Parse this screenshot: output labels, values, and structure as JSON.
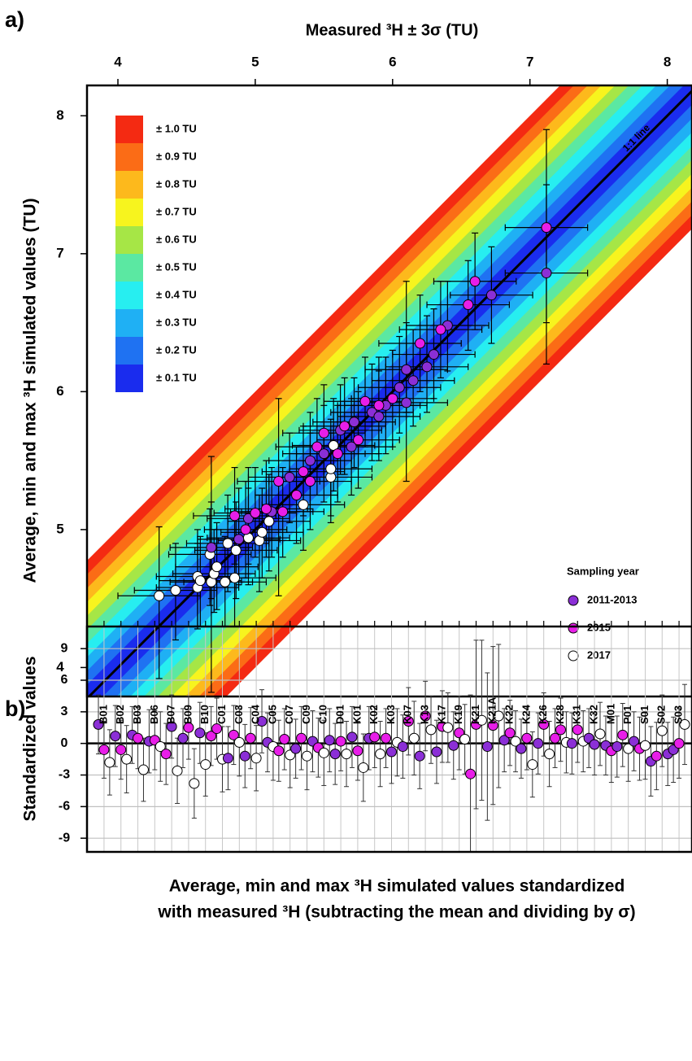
{
  "chart_data": [
    {
      "type": "scatter",
      "panel_label": "a)",
      "xlabel": "Measured ³H ± 3σ (TU)",
      "ylabel": "Average, min and max ³H simulated values (TU)",
      "xlim": [
        3.775,
        8.18
      ],
      "ylim": [
        3.79,
        8.22
      ],
      "xticks": [
        4,
        5,
        6,
        7,
        8
      ],
      "yticks": [
        4,
        5,
        6,
        7,
        8
      ],
      "annotation": "1:1 line",
      "bands": [
        {
          "label": "± 1.0 TU",
          "width": 1.0,
          "color": "#f42a12"
        },
        {
          "label": "± 0.9 TU",
          "width": 0.9,
          "color": "#fb6c16"
        },
        {
          "label": "± 0.8 TU",
          "width": 0.8,
          "color": "#fdb91c"
        },
        {
          "label": "± 0.7 TU",
          "width": 0.7,
          "color": "#f7f41e"
        },
        {
          "label": "± 0.6 TU",
          "width": 0.6,
          "color": "#a6e646"
        },
        {
          "label": "± 0.5 TU",
          "width": 0.5,
          "color": "#5be8a2"
        },
        {
          "label": "± 0.4 TU",
          "width": 0.4,
          "color": "#27eef0"
        },
        {
          "label": "± 0.3 TU",
          "width": 0.3,
          "color": "#1fb0f4"
        },
        {
          "label": "± 0.2 TU",
          "width": 0.2,
          "color": "#1f72f2"
        },
        {
          "label": "± 0.1 TU",
          "width": 0.1,
          "color": "#1a2cee"
        }
      ],
      "legend_title": "Sampling year",
      "legend": "bottom-right",
      "series": [
        {
          "name": "2011-2013",
          "color": "#8b2fd6",
          "xerr": 0.3,
          "x": [
            4.68,
            4.88,
            4.95,
            5.12,
            5.25,
            5.4,
            5.5,
            5.62,
            5.7,
            5.72,
            5.85,
            5.95,
            6.05,
            6.1,
            6.15,
            6.25,
            6.3,
            6.1,
            6.4,
            6.72,
            7.12,
            5.9
          ],
          "y": [
            4.87,
            4.93,
            5.08,
            5.13,
            5.38,
            5.5,
            5.55,
            5.72,
            5.6,
            5.78,
            5.85,
            5.9,
            6.03,
            5.92,
            6.08,
            6.18,
            6.27,
            6.16,
            6.48,
            6.7,
            6.86,
            5.82
          ],
          "ymin": [
            4.5,
            4.6,
            4.75,
            4.8,
            5.05,
            5.15,
            5.2,
            5.4,
            5.25,
            5.45,
            5.5,
            5.55,
            5.7,
            5.35,
            5.75,
            5.85,
            5.95,
            5.85,
            6.15,
            6.35,
            6.2,
            5.5
          ],
          "ymax": [
            5.2,
            5.3,
            5.45,
            5.45,
            5.7,
            5.85,
            5.9,
            6.05,
            5.95,
            6.1,
            6.2,
            6.25,
            6.4,
            6.8,
            6.45,
            6.55,
            6.6,
            6.5,
            6.8,
            7.05,
            7.5,
            6.15
          ]
        },
        {
          "name": "2015",
          "color": "#e81ee8",
          "xerr": 0.3,
          "x": [
            4.85,
            4.93,
            5.0,
            5.08,
            5.17,
            5.2,
            5.3,
            5.35,
            5.4,
            5.45,
            5.5,
            5.6,
            5.65,
            5.75,
            5.8,
            5.9,
            6.0,
            6.2,
            6.35,
            6.55,
            6.6,
            7.12
          ],
          "y": [
            5.1,
            5.0,
            5.12,
            5.15,
            5.35,
            5.13,
            5.25,
            5.42,
            5.35,
            5.6,
            5.7,
            5.55,
            5.75,
            5.65,
            5.93,
            5.9,
            5.95,
            6.35,
            6.45,
            6.63,
            6.8,
            7.19
          ],
          "ymin": [
            4.75,
            4.65,
            4.8,
            4.8,
            4.52,
            4.8,
            4.9,
            5.1,
            5.0,
            5.25,
            5.35,
            5.2,
            5.4,
            5.3,
            5.6,
            5.55,
            5.6,
            6.0,
            6.1,
            6.3,
            6.45,
            6.5
          ],
          "ymax": [
            5.45,
            5.35,
            5.45,
            5.5,
            5.95,
            5.45,
            5.6,
            5.75,
            5.7,
            5.95,
            6.05,
            5.9,
            6.1,
            6.0,
            6.25,
            6.25,
            6.3,
            6.7,
            6.8,
            6.95,
            7.15,
            7.9
          ]
        },
        {
          "name": "2017",
          "color": "#ffffff",
          "xerr": 0.3,
          "x": [
            4.3,
            4.42,
            4.58,
            4.58,
            4.6,
            4.68,
            4.7,
            4.67,
            4.72,
            4.78,
            4.85,
            4.8,
            4.86,
            4.95,
            5.03,
            5.05,
            5.1,
            5.35,
            5.55,
            5.55,
            5.57
          ],
          "y": [
            4.52,
            4.56,
            4.58,
            4.66,
            4.63,
            4.62,
            4.68,
            4.82,
            4.73,
            4.62,
            4.65,
            4.9,
            4.85,
            4.94,
            4.92,
            4.98,
            5.06,
            5.18,
            5.38,
            5.44,
            5.61
          ],
          "ymin": [
            3.92,
            4.2,
            4.28,
            4.3,
            4.3,
            3.82,
            4.4,
            4.45,
            4.42,
            4.3,
            4.3,
            4.55,
            4.5,
            4.6,
            4.55,
            4.65,
            4.7,
            4.85,
            5.05,
            5.1,
            5.28
          ],
          "ymax": [
            5.02,
            4.9,
            4.9,
            5.0,
            4.95,
            5.53,
            5.0,
            5.15,
            5.05,
            4.95,
            5.0,
            5.25,
            5.2,
            5.3,
            5.25,
            5.3,
            5.4,
            5.5,
            5.7,
            5.8,
            5.95
          ]
        }
      ]
    },
    {
      "type": "errorbar",
      "panel_label": "b)",
      "ylabel": "Standardized values",
      "xlabel": [
        "Average, min and max ³H simulated values standardized",
        "with measured ³H (subtracting the mean and dividing by σ)"
      ],
      "ylim": [
        -10.3,
        11.1
      ],
      "yticks": [
        -9,
        -6,
        -3,
        0,
        3,
        6,
        9
      ],
      "grid": true,
      "categories": [
        null,
        "B01",
        null,
        null,
        "B02",
        null,
        null,
        "B03",
        null,
        null,
        "B06",
        null,
        null,
        "B07",
        null,
        null,
        "B09",
        null,
        null,
        "B10",
        null,
        null,
        "C01",
        null,
        null,
        "C03",
        null,
        null,
        "C04",
        null,
        null,
        "C05",
        null,
        null,
        "C07",
        null,
        null,
        "C09",
        null,
        null,
        "C10",
        null,
        null,
        "D01",
        null,
        null,
        "K01",
        null,
        null,
        "K02",
        null,
        null,
        "K03",
        null,
        null,
        "K07",
        null,
        null,
        "K13",
        null,
        null,
        "K17",
        null,
        null,
        "K19",
        null,
        null,
        "K21",
        null,
        null,
        "K21A",
        null,
        null,
        "K22",
        null,
        null,
        "K24",
        null,
        null,
        "K26",
        null,
        null,
        "K28",
        null,
        null,
        "K31",
        null,
        null,
        "K32",
        null,
        null,
        "M01",
        null,
        null,
        "P01",
        null,
        null,
        "S01",
        null,
        null,
        "S02",
        null,
        null,
        "S03",
        null
      ],
      "values": [
        1.8,
        -0.6,
        -1.8,
        0.7,
        -0.6,
        -1.5,
        0.8,
        0.5,
        -2.5,
        0.2,
        0.3,
        -0.3,
        -1.0,
        1.6,
        -2.6,
        0.5,
        1.5,
        -3.8,
        1.0,
        -2.0,
        0.7,
        1.4,
        -1.5,
        -1.4,
        0.8,
        0.1,
        -1.2,
        0.5,
        -1.4,
        2.1,
        0.1,
        -0.3,
        -0.7,
        0.4,
        -1.1,
        -0.5,
        0.5,
        -1.2,
        0.2,
        -0.4,
        -0.9,
        0.3,
        -1.0,
        0.2,
        -1.0,
        0.6,
        -0.7,
        -2.3,
        0.5,
        0.6,
        -1.0,
        0.5,
        -0.8,
        0.1,
        -0.3,
        2.1,
        0.5,
        -1.2,
        2.6,
        1.3,
        -0.8,
        1.6,
        1.5,
        -0.2,
        1.0,
        0.4,
        -2.9,
        1.8,
        2.2,
        -0.3,
        1.7,
        2.6,
        0.3,
        1.0,
        0.2,
        -0.5,
        0.5,
        -2.0,
        0.0,
        1.8,
        -1.0,
        0.5,
        1.3,
        0.1,
        0.0,
        1.3,
        0.2,
        0.5,
        -0.1,
        0.9,
        -0.2,
        -0.7,
        -0.3,
        0.8,
        -0.5,
        0.2,
        -0.5,
        -0.2,
        -1.7,
        -1.2,
        1.2,
        -1.0,
        -0.6,
        0.0,
        1.8
      ],
      "errors": [
        2.8,
        2.7,
        3.1,
        2.9,
        2.8,
        3.2,
        2.7,
        2.9,
        3.0,
        3.0,
        2.8,
        3.3,
        2.9,
        3.0,
        3.1,
        2.8,
        3.0,
        3.3,
        2.9,
        3.0,
        2.8,
        2.9,
        3.1,
        3.0,
        2.8,
        3.2,
        3.0,
        2.9,
        3.1,
        3.0,
        2.8,
        3.2,
        2.9,
        2.9,
        3.1,
        2.8,
        3.0,
        3.2,
        2.9,
        2.8,
        3.1,
        3.0,
        2.9,
        2.8,
        3.1,
        2.9,
        2.8,
        3.2,
        3.0,
        2.9,
        3.1,
        2.8,
        3.0,
        3.2,
        3.0,
        3.2,
        3.5,
        3.1,
        3.3,
        3.2,
        3.0,
        3.4,
        3.3,
        3.2,
        3.5,
        3.3,
        7.5,
        8.0,
        7.6,
        7.0,
        7.5,
        6.8,
        3.0,
        3.1,
        2.9,
        2.8,
        3.0,
        3.1,
        2.9,
        3.0,
        3.1,
        2.8,
        3.0,
        2.9,
        2.9,
        3.1,
        2.9,
        2.8,
        2.9,
        3.0,
        2.8,
        3.0,
        2.9,
        3.0,
        3.1,
        2.8,
        3.0,
        3.2,
        3.3,
        3.2,
        3.4,
        3.0,
        3.1,
        3.3,
        3.8
      ],
      "colors": [
        "#8b2fd6",
        "#e81ee8",
        "#ffffff",
        "#8b2fd6",
        "#e81ee8",
        "#ffffff",
        "#8b2fd6",
        "#e81ee8",
        "#ffffff",
        "#8b2fd6",
        "#e81ee8",
        "#ffffff",
        "#e81ee8",
        "#8b2fd6",
        "#ffffff",
        "#8b2fd6",
        "#e81ee8",
        "#ffffff",
        "#8b2fd6",
        "#ffffff",
        "#e81ee8",
        "#e81ee8",
        "#ffffff",
        "#8b2fd6",
        "#e81ee8",
        "#ffffff",
        "#8b2fd6",
        "#e81ee8",
        "#ffffff",
        "#8b2fd6",
        "#8b2fd6",
        "#ffffff",
        "#e81ee8",
        "#e81ee8",
        "#ffffff",
        "#8b2fd6",
        "#e81ee8",
        "#ffffff",
        "#8b2fd6",
        "#e81ee8",
        "#ffffff",
        "#8b2fd6",
        "#8b2fd6",
        "#e81ee8",
        "#ffffff",
        "#8b2fd6",
        "#e81ee8",
        "#ffffff",
        "#8b2fd6",
        "#e81ee8",
        "#ffffff",
        "#e81ee8",
        "#8b2fd6",
        "#ffffff",
        "#8b2fd6",
        "#e81ee8",
        "#ffffff",
        "#8b2fd6",
        "#e81ee8",
        "#ffffff",
        "#8b2fd6",
        "#e81ee8",
        "#ffffff",
        "#8b2fd6",
        "#e81ee8",
        "#ffffff",
        "#e81ee8",
        "#e81ee8",
        "#ffffff",
        "#8b2fd6",
        "#e81ee8",
        "#ffffff",
        "#8b2fd6",
        "#e81ee8",
        "#ffffff",
        "#8b2fd6",
        "#e81ee8",
        "#ffffff",
        "#8b2fd6",
        "#e81ee8",
        "#ffffff",
        "#e81ee8",
        "#e81ee8",
        "#ffffff",
        "#8b2fd6",
        "#e81ee8",
        "#ffffff",
        "#8b2fd6",
        "#8b2fd6",
        "#ffffff",
        "#8b2fd6",
        "#e81ee8",
        "#8b2fd6",
        "#e81ee8",
        "#ffffff",
        "#8b2fd6",
        "#e81ee8",
        "#ffffff",
        "#8b2fd6",
        "#e81ee8",
        "#ffffff",
        "#8b2fd6",
        "#8b2fd6",
        "#e81ee8",
        "#ffffff"
      ]
    }
  ]
}
